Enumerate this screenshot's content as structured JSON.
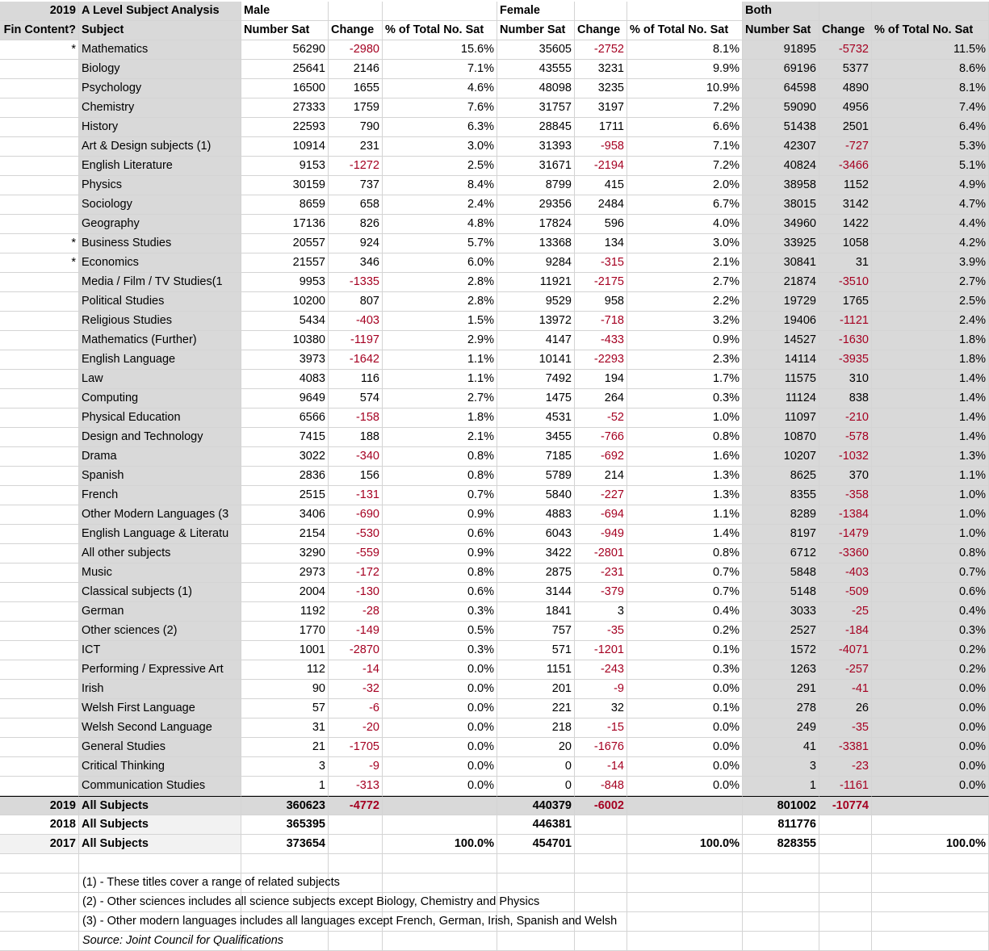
{
  "title_year": "2019",
  "title": "A Level Subject Analysis",
  "groups": [
    "Male",
    "Female",
    "Both"
  ],
  "col_headers": [
    "Fin Content?",
    "Subject",
    "Number Sat",
    "Change",
    "% of Total No. Sat",
    "Number Sat",
    "Change",
    "% of Total No. Sat",
    "Number Sat",
    "Change",
    "% of Total No. Sat"
  ],
  "colors": {
    "header_grey": "#d9d9d9",
    "light_grey": "#f2f2f2",
    "negative": "#a50021"
  },
  "rows": [
    [
      "*",
      "Mathematics",
      "56290",
      "-2980",
      "15.6%",
      "35605",
      "-2752",
      "8.1%",
      "91895",
      "-5732",
      "11.5%"
    ],
    [
      "",
      "Biology",
      "25641",
      "2146",
      "7.1%",
      "43555",
      "3231",
      "9.9%",
      "69196",
      "5377",
      "8.6%"
    ],
    [
      "",
      "Psychology",
      "16500",
      "1655",
      "4.6%",
      "48098",
      "3235",
      "10.9%",
      "64598",
      "4890",
      "8.1%"
    ],
    [
      "",
      "Chemistry",
      "27333",
      "1759",
      "7.6%",
      "31757",
      "3197",
      "7.2%",
      "59090",
      "4956",
      "7.4%"
    ],
    [
      "",
      "History",
      "22593",
      "790",
      "6.3%",
      "28845",
      "1711",
      "6.6%",
      "51438",
      "2501",
      "6.4%"
    ],
    [
      "",
      "Art & Design subjects (1)",
      "10914",
      "231",
      "3.0%",
      "31393",
      "-958",
      "7.1%",
      "42307",
      "-727",
      "5.3%"
    ],
    [
      "",
      "English Literature",
      "9153",
      "-1272",
      "2.5%",
      "31671",
      "-2194",
      "7.2%",
      "40824",
      "-3466",
      "5.1%"
    ],
    [
      "",
      "Physics",
      "30159",
      "737",
      "8.4%",
      "8799",
      "415",
      "2.0%",
      "38958",
      "1152",
      "4.9%"
    ],
    [
      "",
      "Sociology",
      "8659",
      "658",
      "2.4%",
      "29356",
      "2484",
      "6.7%",
      "38015",
      "3142",
      "4.7%"
    ],
    [
      "",
      "Geography",
      "17136",
      "826",
      "4.8%",
      "17824",
      "596",
      "4.0%",
      "34960",
      "1422",
      "4.4%"
    ],
    [
      "*",
      "Business Studies",
      "20557",
      "924",
      "5.7%",
      "13368",
      "134",
      "3.0%",
      "33925",
      "1058",
      "4.2%"
    ],
    [
      "*",
      "Economics",
      "21557",
      "346",
      "6.0%",
      "9284",
      "-315",
      "2.1%",
      "30841",
      "31",
      "3.9%"
    ],
    [
      "",
      "Media / Film / TV Studies(1",
      "9953",
      "-1335",
      "2.8%",
      "11921",
      "-2175",
      "2.7%",
      "21874",
      "-3510",
      "2.7%"
    ],
    [
      "",
      "Political Studies",
      "10200",
      "807",
      "2.8%",
      "9529",
      "958",
      "2.2%",
      "19729",
      "1765",
      "2.5%"
    ],
    [
      "",
      "Religious Studies",
      "5434",
      "-403",
      "1.5%",
      "13972",
      "-718",
      "3.2%",
      "19406",
      "-1121",
      "2.4%"
    ],
    [
      "",
      "Mathematics (Further)",
      "10380",
      "-1197",
      "2.9%",
      "4147",
      "-433",
      "0.9%",
      "14527",
      "-1630",
      "1.8%"
    ],
    [
      "",
      "English Language",
      "3973",
      "-1642",
      "1.1%",
      "10141",
      "-2293",
      "2.3%",
      "14114",
      "-3935",
      "1.8%"
    ],
    [
      "",
      "Law",
      "4083",
      "116",
      "1.1%",
      "7492",
      "194",
      "1.7%",
      "11575",
      "310",
      "1.4%"
    ],
    [
      "",
      "Computing",
      "9649",
      "574",
      "2.7%",
      "1475",
      "264",
      "0.3%",
      "11124",
      "838",
      "1.4%"
    ],
    [
      "",
      "Physical Education",
      "6566",
      "-158",
      "1.8%",
      "4531",
      "-52",
      "1.0%",
      "11097",
      "-210",
      "1.4%"
    ],
    [
      "",
      "Design and Technology",
      "7415",
      "188",
      "2.1%",
      "3455",
      "-766",
      "0.8%",
      "10870",
      "-578",
      "1.4%"
    ],
    [
      "",
      "Drama",
      "3022",
      "-340",
      "0.8%",
      "7185",
      "-692",
      "1.6%",
      "10207",
      "-1032",
      "1.3%"
    ],
    [
      "",
      "Spanish",
      "2836",
      "156",
      "0.8%",
      "5789",
      "214",
      "1.3%",
      "8625",
      "370",
      "1.1%"
    ],
    [
      "",
      "French",
      "2515",
      "-131",
      "0.7%",
      "5840",
      "-227",
      "1.3%",
      "8355",
      "-358",
      "1.0%"
    ],
    [
      "",
      "Other Modern Languages (3",
      "3406",
      "-690",
      "0.9%",
      "4883",
      "-694",
      "1.1%",
      "8289",
      "-1384",
      "1.0%"
    ],
    [
      "",
      "English Language & Literatu",
      "2154",
      "-530",
      "0.6%",
      "6043",
      "-949",
      "1.4%",
      "8197",
      "-1479",
      "1.0%"
    ],
    [
      "",
      "All other subjects",
      "3290",
      "-559",
      "0.9%",
      "3422",
      "-2801",
      "0.8%",
      "6712",
      "-3360",
      "0.8%"
    ],
    [
      "",
      "Music",
      "2973",
      "-172",
      "0.8%",
      "2875",
      "-231",
      "0.7%",
      "5848",
      "-403",
      "0.7%"
    ],
    [
      "",
      "Classical subjects (1)",
      "2004",
      "-130",
      "0.6%",
      "3144",
      "-379",
      "0.7%",
      "5148",
      "-509",
      "0.6%"
    ],
    [
      "",
      "German",
      "1192",
      "-28",
      "0.3%",
      "1841",
      "3",
      "0.4%",
      "3033",
      "-25",
      "0.4%"
    ],
    [
      "",
      "Other sciences (2)",
      "1770",
      "-149",
      "0.5%",
      "757",
      "-35",
      "0.2%",
      "2527",
      "-184",
      "0.3%"
    ],
    [
      "",
      "ICT",
      "1001",
      "-2870",
      "0.3%",
      "571",
      "-1201",
      "0.1%",
      "1572",
      "-4071",
      "0.2%"
    ],
    [
      "",
      "Performing / Expressive Art",
      "112",
      "-14",
      "0.0%",
      "1151",
      "-243",
      "0.3%",
      "1263",
      "-257",
      "0.2%"
    ],
    [
      "",
      "Irish",
      "90",
      "-32",
      "0.0%",
      "201",
      "-9",
      "0.0%",
      "291",
      "-41",
      "0.0%"
    ],
    [
      "",
      "Welsh First Language",
      "57",
      "-6",
      "0.0%",
      "221",
      "32",
      "0.1%",
      "278",
      "26",
      "0.0%"
    ],
    [
      "",
      "Welsh Second Language",
      "31",
      "-20",
      "0.0%",
      "218",
      "-15",
      "0.0%",
      "249",
      "-35",
      "0.0%"
    ],
    [
      "",
      "General Studies",
      "21",
      "-1705",
      "0.0%",
      "20",
      "-1676",
      "0.0%",
      "41",
      "-3381",
      "0.0%"
    ],
    [
      "",
      "Critical Thinking",
      "3",
      "-9",
      "0.0%",
      "0",
      "-14",
      "0.0%",
      "3",
      "-23",
      "0.0%"
    ],
    [
      "",
      "Communication Studies",
      "1",
      "-313",
      "0.0%",
      "0",
      "-848",
      "0.0%",
      "1",
      "-1161",
      "0.0%"
    ]
  ],
  "totals": [
    [
      "2019",
      "All Subjects",
      "360623",
      "-4772",
      "",
      "440379",
      "-6002",
      "",
      "801002",
      "-10774",
      ""
    ],
    [
      "2018",
      "All Subjects",
      "365395",
      "",
      "",
      "446381",
      "",
      "",
      "811776",
      "",
      ""
    ],
    [
      "2017",
      "All Subjects",
      "373654",
      "",
      "100.0%",
      "454701",
      "",
      "100.0%",
      "828355",
      "",
      "100.0%"
    ]
  ],
  "notes": [
    "(1) - These titles cover a range of related subjects",
    "(2) - Other sciences includes all science subjects except Biology, Chemistry and Physics",
    "(3) - Other modern languages includes all languages except French, German, Irish, Spanish and Welsh",
    "Source: Joint Council for Qualifications"
  ]
}
